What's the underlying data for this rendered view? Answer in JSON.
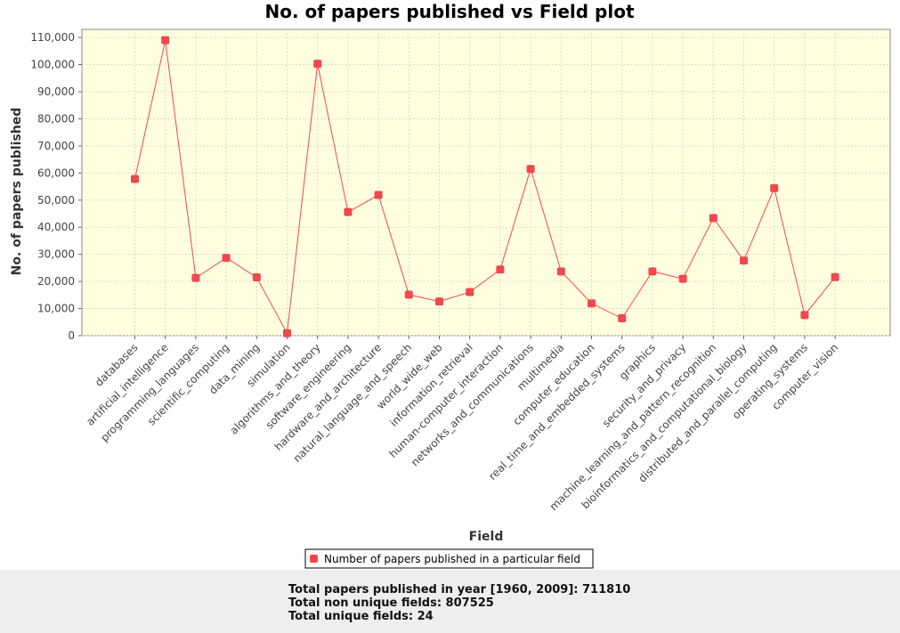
{
  "colors": {
    "plot_background": "#ffffe0",
    "series_color": "#f0484e",
    "grid_color": "#d9d9c0",
    "footer_background": "#eeeeee"
  },
  "chart_data": {
    "type": "line",
    "title": "No. of papers published vs Field plot",
    "xlabel": "Field",
    "ylabel": "No. of papers published",
    "ylim": [
      0,
      113000
    ],
    "yticks": [
      0,
      10000,
      20000,
      30000,
      40000,
      50000,
      60000,
      70000,
      80000,
      90000,
      100000,
      110000
    ],
    "ytick_labels": [
      "0",
      "10,000",
      "20,000",
      "30,000",
      "40,000",
      "50,000",
      "60,000",
      "70,000",
      "80,000",
      "90,000",
      "100,000",
      "110,000"
    ],
    "grid": true,
    "legend_position": "bottom",
    "categories": [
      "databases",
      "artificial_intelligence",
      "programming_languages",
      "scientific_computing",
      "data_mining",
      "simulation",
      "algorithms_and_theory",
      "software_engineering",
      "hardware_and_architecture",
      "natural_language_and_speech",
      "world_wide_web",
      "information_retrieval",
      "human-computer_interaction",
      "networks_and_communications",
      "multimedia",
      "computer_education",
      "real_time_and_embedded_systems",
      "graphics",
      "security_and_privacy",
      "machine_learning_and_pattern_recognition",
      "bioinformatics_and_computational_biology",
      "distributed_and_parallel_computing",
      "operating_systems",
      "computer_vision"
    ],
    "series": [
      {
        "name": "Number of papers published in a particular field",
        "values": [
          57800,
          109000,
          21300,
          28700,
          21500,
          900,
          100300,
          45600,
          51900,
          15100,
          12600,
          16100,
          24400,
          61500,
          23700,
          11900,
          6400,
          23700,
          21000,
          43400,
          27700,
          54400,
          7600,
          21600
        ]
      }
    ]
  },
  "footer": {
    "line1": "Total papers published in year [1960, 2009]: 711810",
    "line2": "Total non unique fields: 807525",
    "line3": "Total unique fields: 24"
  }
}
